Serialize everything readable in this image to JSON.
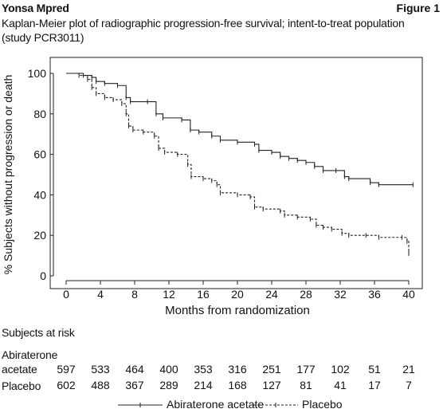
{
  "header": {
    "left": "Yonsa Mpred",
    "right": "Figure 1"
  },
  "subtitle_lines": [
    "Kaplan-Meier plot of radiographic progression-free survival; intent-to-treat population",
    "(study PCR3011)"
  ],
  "chart_data": {
    "type": "line",
    "step": true,
    "xlabel": "Months from randomization",
    "ylabel": "% Subjects without progression or death",
    "xlim": [
      0,
      41
    ],
    "ylim": [
      0,
      100
    ],
    "xticks": [
      0,
      4,
      8,
      12,
      16,
      20,
      24,
      28,
      32,
      36,
      40
    ],
    "yticks": [
      0,
      20,
      40,
      60,
      80,
      100
    ],
    "grid": false,
    "legend_position": "bottom-center",
    "series": [
      {
        "name": "Abiraterone acetate",
        "style": "solid",
        "points": [
          [
            0,
            100
          ],
          [
            2,
            99
          ],
          [
            3,
            98
          ],
          [
            3.5,
            96
          ],
          [
            4.5,
            95
          ],
          [
            6,
            94
          ],
          [
            7,
            88
          ],
          [
            7.5,
            86
          ],
          [
            9.5,
            86
          ],
          [
            10.5,
            80
          ],
          [
            11.3,
            78
          ],
          [
            13.5,
            77
          ],
          [
            14.5,
            72
          ],
          [
            15.5,
            71
          ],
          [
            17,
            69
          ],
          [
            18,
            67
          ],
          [
            20,
            66
          ],
          [
            22,
            65
          ],
          [
            22.5,
            62
          ],
          [
            24,
            61
          ],
          [
            25,
            59
          ],
          [
            26,
            58
          ],
          [
            27,
            57
          ],
          [
            28,
            56
          ],
          [
            29,
            54
          ],
          [
            30,
            52
          ],
          [
            31.5,
            52
          ],
          [
            32.5,
            49
          ],
          [
            33,
            48
          ],
          [
            35.5,
            46
          ],
          [
            36.5,
            45
          ],
          [
            40.5,
            45
          ]
        ]
      },
      {
        "name": "Placebo",
        "style": "dashed",
        "points": [
          [
            0,
            100
          ],
          [
            1.5,
            99
          ],
          [
            2.5,
            97
          ],
          [
            3,
            93
          ],
          [
            3.5,
            90
          ],
          [
            4.5,
            88
          ],
          [
            5.5,
            87
          ],
          [
            6.5,
            85
          ],
          [
            7,
            80
          ],
          [
            7.3,
            74
          ],
          [
            7.8,
            72
          ],
          [
            9,
            71
          ],
          [
            10.3,
            69
          ],
          [
            10.8,
            63
          ],
          [
            11.5,
            61
          ],
          [
            13,
            60
          ],
          [
            14.2,
            55
          ],
          [
            14.6,
            49
          ],
          [
            16,
            48
          ],
          [
            17,
            47
          ],
          [
            17.6,
            45
          ],
          [
            18,
            41
          ],
          [
            20,
            40
          ],
          [
            21.5,
            39
          ],
          [
            22,
            34
          ],
          [
            23,
            33
          ],
          [
            25,
            32
          ],
          [
            25.5,
            30
          ],
          [
            27,
            29
          ],
          [
            28.5,
            28
          ],
          [
            29.2,
            25
          ],
          [
            30,
            24
          ],
          [
            31,
            23
          ],
          [
            32.2,
            21
          ],
          [
            33,
            20
          ],
          [
            35,
            20
          ],
          [
            36.5,
            19
          ],
          [
            39.2,
            19
          ],
          [
            39.8,
            17
          ],
          [
            40,
            11
          ]
        ]
      }
    ]
  },
  "risk_table": {
    "title": "Subjects at risk",
    "rows": [
      {
        "label_lines": [
          "Abiraterone",
          "acetate"
        ],
        "values": [
          "597",
          "533",
          "464",
          "400",
          "353",
          "316",
          "251",
          "177",
          "102",
          "51",
          "21"
        ]
      },
      {
        "label_lines": [
          "Placebo"
        ],
        "values": [
          "602",
          "488",
          "367",
          "289",
          "214",
          "168",
          "127",
          "81",
          "41",
          "17",
          "7"
        ]
      }
    ]
  },
  "legend": {
    "items": [
      {
        "label": "Abiraterone acetate"
      },
      {
        "label": "Placebo"
      }
    ]
  }
}
